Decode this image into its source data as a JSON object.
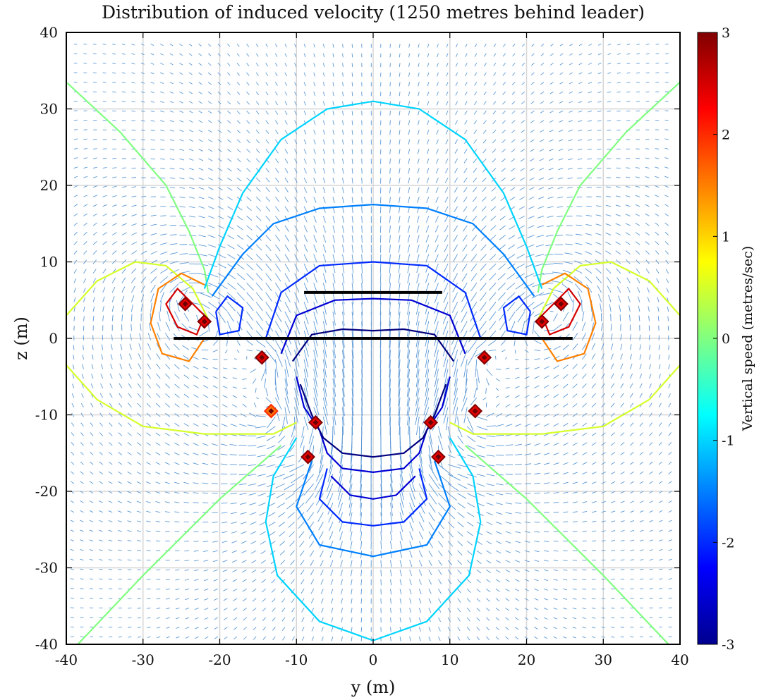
{
  "chart_data": {
    "type": "contour",
    "title": "Distribution of induced velocity (1250 metres behind leader)",
    "xlabel": "y (m)",
    "ylabel": "z (m)",
    "xlim": [
      -40,
      40
    ],
    "ylim": [
      -40,
      40
    ],
    "xticks": [
      "-40",
      "-30",
      "-20",
      "-10",
      "0",
      "10",
      "20",
      "30",
      "40"
    ],
    "yticks": [
      "40",
      "30",
      "20",
      "10",
      "0",
      "-10",
      "-20",
      "-30",
      "-40"
    ],
    "grid": true,
    "colorbar": {
      "label": "Vertical speed (metres/sec)",
      "range": [
        -3,
        3
      ],
      "ticks": [
        "3",
        "2",
        "1",
        "0",
        "-1",
        "-2",
        "-3"
      ],
      "colormap": "jet"
    },
    "wing_segments": [
      {
        "name": "leader wing",
        "y": [
          -26,
          26
        ],
        "z": 0
      },
      {
        "name": "trailing wing",
        "y": [
          -9,
          9
        ],
        "z": 6
      }
    ],
    "vortex_cores": [
      {
        "y": -24.5,
        "z": 4.5,
        "level": 3
      },
      {
        "y": 24.5,
        "z": 4.5,
        "level": 3
      },
      {
        "y": -22,
        "z": 2.2,
        "level": 3
      },
      {
        "y": 22,
        "z": 2.2,
        "level": 3
      },
      {
        "y": -14.5,
        "z": -2.5,
        "level": 3
      },
      {
        "y": 14.5,
        "z": -2.5,
        "level": 3
      },
      {
        "y": -7.5,
        "z": -11,
        "level": 3
      },
      {
        "y": 7.5,
        "z": -11,
        "level": 3
      },
      {
        "y": -8.5,
        "z": -15.5,
        "level": 3
      },
      {
        "y": 8.5,
        "z": -15.5,
        "level": 3
      },
      {
        "y": 13.3,
        "z": -9.5,
        "level": 3
      },
      {
        "y": -13.3,
        "z": -9.5,
        "level": 2
      }
    ],
    "contour_levels": [
      -3,
      -2.5,
      -2,
      -1.5,
      -1,
      -0.5,
      0,
      0.5,
      1,
      1.5,
      2,
      2.5,
      3
    ]
  },
  "colors": {
    "axis": "#000000",
    "grid": "#d6d6d6",
    "quiver": "#5a98d6",
    "wing": "#000000"
  }
}
